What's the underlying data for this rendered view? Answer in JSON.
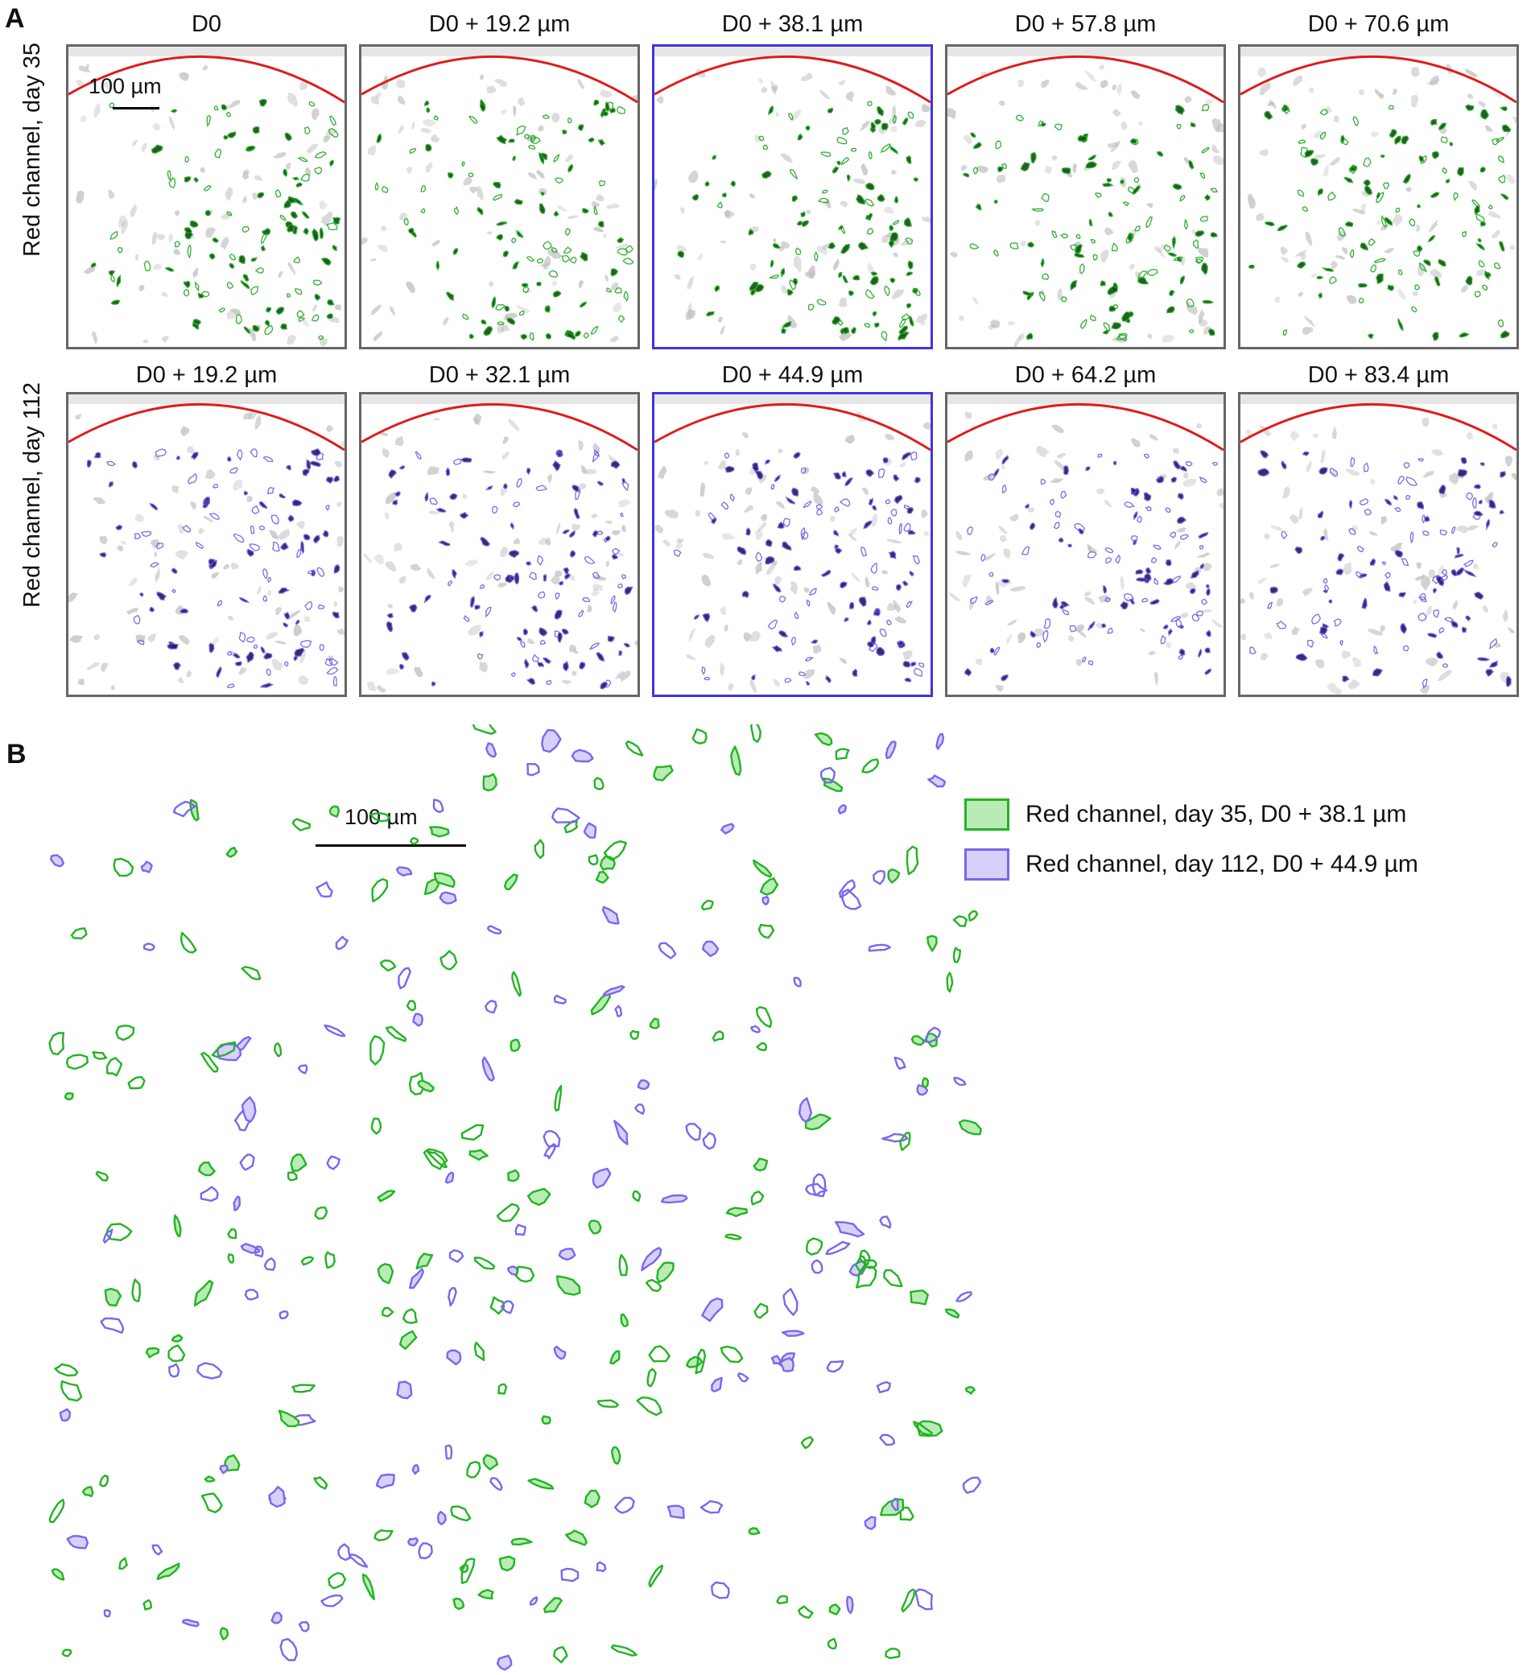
{
  "panel_a": {
    "letter": "A",
    "rows": [
      {
        "label": "Red channel, day 35",
        "color": "#1aa51a",
        "dark": "#0c4d0c",
        "titles": [
          "D0",
          "D0 + 19.2 µm",
          "D0 + 38.1 µm",
          "D0 + 57.8 µm",
          "D0 + 70.6 µm"
        ],
        "highlighted_index": 2
      },
      {
        "label": "Red channel, day 112",
        "color": "#6a5ae8",
        "dark": "#1c1760",
        "titles": [
          "D0 + 19.2 µm",
          "D0 + 32.1 µm",
          "D0 + 44.9 µm",
          "D0 + 64.2 µm",
          "D0 + 83.4 µm"
        ],
        "highlighted_index": 2
      }
    ],
    "scale_bar_label": "100 µm",
    "boundary_color": "#e01b1b",
    "highlight_color": "#3f34e0"
  },
  "panel_b": {
    "letter": "B",
    "scale_bar_label": "100 µm",
    "legend": [
      {
        "label": "Red channel, day 35, D0 + 38.1 µm",
        "stroke": "#22b422",
        "fill": "#b9ecb5"
      },
      {
        "label": "Red channel, day 112, D0 + 44.9 µm",
        "stroke": "#7b66ee",
        "fill": "#d7d0fb"
      }
    ]
  }
}
